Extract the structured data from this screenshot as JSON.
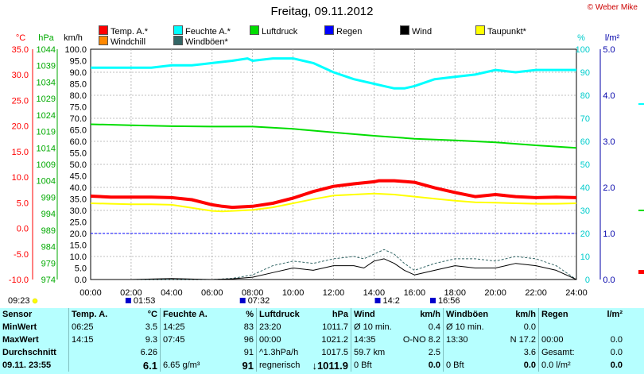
{
  "title": "Freitag, 09.11.2012",
  "credit": "© Weber Mike",
  "legend": [
    {
      "label": "Temp. A.*",
      "color": "#ff0000"
    },
    {
      "label": "Feuchte A.*",
      "color": "#00ffff"
    },
    {
      "label": "Luftdruck",
      "color": "#00dd00"
    },
    {
      "label": "Regen",
      "color": "#0000ff"
    },
    {
      "label": "Wind",
      "color": "#000000"
    },
    {
      "label": "Taupunkt*",
      "color": "#ffff00"
    },
    {
      "label": "Windchill",
      "color": "#ff8800"
    },
    {
      "label": "Windböen*",
      "color": "#336666"
    }
  ],
  "chart_data": {
    "type": "line",
    "x_ticks": [
      "00:00",
      "02:00",
      "04:00",
      "06:00",
      "08:00",
      "10:00",
      "12:00",
      "14:00",
      "16:00",
      "18:00",
      "20:00",
      "22:00",
      "24:00"
    ],
    "axes": {
      "temp": {
        "unit": "°C",
        "ticks": [
          "35.0",
          "30.0",
          "25.0",
          "20.0",
          "15.0",
          "10.0",
          "5.0",
          "0.0",
          "-5.0",
          "-10.0"
        ]
      },
      "pressure": {
        "unit": "hPa",
        "ticks": [
          "1044",
          "1039",
          "1034",
          "1029",
          "1024",
          "1019",
          "1014",
          "1009",
          "1004",
          "999",
          "994",
          "989",
          "984",
          "979",
          "974"
        ]
      },
      "wind": {
        "unit": "km/h",
        "ticks": [
          "100.0",
          "95.0",
          "90.0",
          "85.0",
          "80.0",
          "75.0",
          "70.0",
          "65.0",
          "60.0",
          "55.0",
          "50.0",
          "45.0",
          "40.0",
          "35.0",
          "30.0",
          "25.0",
          "20.0",
          "15.0",
          "10.0",
          "5.0",
          "0.0"
        ]
      },
      "humidity": {
        "unit": "%",
        "ticks": [
          "100",
          "90",
          "80",
          "70",
          "60",
          "50",
          "40",
          "30",
          "20",
          "10",
          "0"
        ]
      },
      "rain": {
        "unit": "l/m²",
        "ticks": [
          "5.0",
          "4.0",
          "3.0",
          "2.0",
          "1.0",
          "0.0"
        ]
      }
    },
    "series": [
      {
        "name": "Temp. A.*",
        "axis": "temp",
        "color": "#ff0000",
        "width": 4,
        "x": [
          0,
          1,
          2,
          3,
          4,
          5,
          6,
          6.5,
          7,
          8,
          9,
          10,
          11,
          12,
          13,
          14,
          14.25,
          15,
          16,
          17,
          18,
          19,
          20,
          21,
          22,
          23,
          24
        ],
        "y": [
          6.3,
          6.1,
          6.1,
          6.1,
          6.0,
          5.6,
          4.6,
          4.3,
          4.1,
          4.3,
          4.9,
          5.9,
          7.2,
          8.2,
          8.7,
          9.1,
          9.3,
          9.3,
          9.0,
          7.9,
          7.0,
          6.2,
          6.6,
          6.2,
          6.0,
          6.1,
          6.0
        ]
      },
      {
        "name": "Feuchte A.*",
        "axis": "humidity",
        "color": "#00ffff",
        "width": 3,
        "x": [
          0,
          1,
          2,
          3,
          4,
          5,
          6,
          7,
          7.75,
          8,
          9,
          10,
          11,
          12,
          13,
          14,
          14.5,
          15,
          15.5,
          16,
          17,
          18,
          19,
          20,
          21,
          22,
          23,
          24
        ],
        "y": [
          92,
          92,
          92,
          92,
          93,
          93,
          94,
          95,
          96,
          95,
          96,
          96,
          94,
          90,
          87,
          85,
          84,
          83,
          83,
          84,
          87,
          88,
          89,
          91,
          90,
          91,
          91,
          91
        ]
      },
      {
        "name": "Luftdruck",
        "axis": "pressure",
        "color": "#00dd00",
        "width": 2,
        "x": [
          0,
          2,
          4,
          6,
          8,
          10,
          12,
          14,
          16,
          18,
          20,
          22,
          24
        ],
        "y": [
          1021.2,
          1020.9,
          1020.6,
          1020.5,
          1020.5,
          1019.8,
          1018.7,
          1017.7,
          1016.8,
          1016.3,
          1015.7,
          1014.8,
          1014.0
        ]
      },
      {
        "name": "Taupunkt*",
        "axis": "temp",
        "color": "#ffff00",
        "width": 2,
        "x": [
          0,
          1,
          2,
          3,
          4,
          5,
          6,
          6.5,
          7,
          8,
          9,
          10,
          11,
          12,
          13,
          14,
          15,
          16,
          17,
          18,
          19,
          20,
          21,
          22,
          23,
          24
        ],
        "y": [
          4.9,
          4.8,
          4.7,
          4.7,
          4.6,
          4.0,
          3.4,
          3.3,
          3.4,
          3.6,
          4.1,
          4.9,
          5.7,
          6.4,
          6.6,
          6.8,
          6.6,
          6.2,
          5.8,
          5.4,
          5.1,
          5.0,
          4.9,
          4.8,
          4.8,
          4.9
        ]
      },
      {
        "name": "Regen",
        "axis": "rain",
        "color": "#0000ff",
        "width": 1,
        "dashed": true,
        "x": [
          0,
          24
        ],
        "y": [
          1.0,
          1.0
        ]
      },
      {
        "name": "Wind",
        "axis": "wind",
        "color": "#000000",
        "width": 1,
        "x": [
          0,
          2,
          4,
          6,
          7,
          8,
          9,
          10,
          11,
          12,
          13,
          13.5,
          14,
          14.5,
          15,
          15.5,
          16,
          17,
          18,
          19,
          20,
          21,
          22,
          23,
          24
        ],
        "y": [
          0,
          0,
          0.4,
          0,
          0.3,
          1,
          3,
          5,
          4,
          6,
          6,
          5,
          8,
          9,
          7,
          4,
          2,
          4,
          6,
          5,
          5,
          7,
          6,
          4,
          0
        ]
      },
      {
        "name": "Windböen*",
        "axis": "wind",
        "color": "#336666",
        "width": 1,
        "dashed": true,
        "x": [
          0,
          2,
          4,
          6,
          7,
          8,
          9,
          10,
          11,
          12,
          13,
          13.5,
          14,
          14.5,
          15,
          15.5,
          16,
          17,
          18,
          19,
          20,
          21,
          22,
          23,
          24
        ],
        "y": [
          0,
          0,
          0,
          0,
          0.5,
          2,
          6,
          8,
          7,
          9,
          10,
          9,
          11,
          13,
          11,
          7,
          4,
          7,
          9,
          9,
          8,
          10,
          9,
          6,
          0
        ]
      }
    ],
    "marks": [
      {
        "x": 1.88,
        "label": "01:53"
      },
      {
        "x": 7.53,
        "label": "07:32"
      },
      {
        "x": 14.2,
        "label": "14:2"
      },
      {
        "x": 16.93,
        "label": "16:56"
      }
    ],
    "sunrise_label": "09:23"
  },
  "stats": {
    "headers": [
      "Sensor",
      "Temp. A.",
      "°C",
      "Feuchte A.",
      "%",
      "Luftdruck",
      "hPa",
      "Wind",
      "km/h",
      "Windböen",
      "km/h",
      "Regen",
      "l/m²"
    ],
    "rows": [
      {
        "label": "MinWert",
        "temp_time": "06:25",
        "temp_val": "3.5",
        "hum_time": "14:25",
        "hum_val": "83",
        "pres_time": "23:20",
        "pres_val": "1011.7",
        "wind_l": "Ø 10 min.",
        "wind_val": "0.4",
        "gust_l": "Ø 10 min.",
        "gust_val": "0.0",
        "rain_l": "",
        "rain_val": ""
      },
      {
        "label": "MaxWert",
        "temp_time": "14:15",
        "temp_val": "9.3",
        "hum_time": "07:45",
        "hum_val": "96",
        "pres_time": "00:00",
        "pres_val": "1021.2",
        "wind_l": "14:35",
        "wind_val": "O-NO 8.2",
        "gust_l": "13:30",
        "gust_val": "N 17.2",
        "rain_l": "00:00",
        "rain_val": "0.0"
      },
      {
        "label": "Durchschnitt",
        "temp_time": "",
        "temp_val": "6.26",
        "hum_time": "",
        "hum_val": "91",
        "pres_time": "^1.3hPa/h",
        "pres_val": "1017.5",
        "wind_l": "59.7 km",
        "wind_val": "2.5",
        "gust_l": "",
        "gust_val": "3.6",
        "rain_l": "Gesamt:",
        "rain_val": "0.0"
      },
      {
        "label": "09.11. 23:55",
        "temp_time": "",
        "temp_val": "6.1",
        "hum_time": "6.65 g/m³",
        "hum_val": "91",
        "pres_time": "regnerisch",
        "pres_val": "↓1011.9",
        "wind_l": "0 Bft",
        "wind_val": "0.0",
        "gust_l": "0 Bft",
        "gust_val": "0.0",
        "rain_l": "0.0 l/m²",
        "rain_val": "0.0"
      }
    ]
  }
}
